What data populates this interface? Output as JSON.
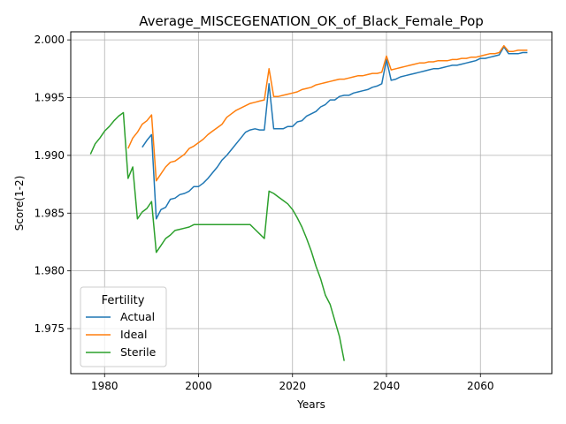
{
  "chart_data": {
    "type": "line",
    "title": "Average_MISCEGENATION_OK_of_Black_Female_Pop",
    "xlabel": "Years",
    "ylabel": "Score(1-2)",
    "xlim": [
      1972.8,
      2075.2
    ],
    "ylim": [
      1.9711,
      2.0007
    ],
    "x_ticks": [
      1980,
      2000,
      2020,
      2040,
      2060
    ],
    "x_tick_labels": [
      "1980",
      "2000",
      "2020",
      "2040",
      "2060"
    ],
    "y_ticks": [
      1.975,
      1.98,
      1.985,
      1.99,
      1.995,
      2.0
    ],
    "y_tick_labels": [
      "1.975",
      "1.980",
      "1.985",
      "1.990",
      "1.995",
      "2.000"
    ],
    "grid": true,
    "legend": {
      "title": "Fertility",
      "position": "lower-left"
    },
    "series": [
      {
        "name": "Actual",
        "color": "#1f77b4",
        "x": [
          1988,
          1989,
          1990,
          1991,
          1992,
          1993,
          1994,
          1995,
          1996,
          1997,
          1998,
          1999,
          2000,
          2001,
          2002,
          2003,
          2004,
          2005,
          2006,
          2007,
          2008,
          2009,
          2010,
          2011,
          2012,
          2013,
          2014,
          2015,
          2016,
          2017,
          2018,
          2019,
          2020,
          2021,
          2022,
          2023,
          2024,
          2025,
          2026,
          2027,
          2028,
          2029,
          2030,
          2031,
          2032,
          2033,
          2034,
          2035,
          2036,
          2037,
          2038,
          2039,
          2040,
          2041,
          2042,
          2043,
          2044,
          2045,
          2046,
          2047,
          2048,
          2049,
          2050,
          2051,
          2052,
          2053,
          2054,
          2055,
          2056,
          2057,
          2058,
          2059,
          2060,
          2061,
          2062,
          2063,
          2064,
          2065,
          2066,
          2067,
          2068,
          2069,
          2070
        ],
        "values": [
          1.9907,
          1.9913,
          1.9918,
          1.9845,
          1.9853,
          1.9855,
          1.9862,
          1.9863,
          1.9866,
          1.9867,
          1.9869,
          1.9873,
          1.9873,
          1.9876,
          1.988,
          1.9885,
          1.989,
          1.9896,
          1.99,
          1.9905,
          1.991,
          1.9915,
          1.992,
          1.9922,
          1.9923,
          1.9922,
          1.9922,
          1.9962,
          1.9923,
          1.9923,
          1.9923,
          1.9925,
          1.9925,
          1.9929,
          1.993,
          1.9934,
          1.9936,
          1.9938,
          1.9942,
          1.9944,
          1.9948,
          1.9948,
          1.9951,
          1.9952,
          1.9952,
          1.9954,
          1.9955,
          1.9956,
          1.9957,
          1.9959,
          1.996,
          1.9962,
          1.9983,
          1.9965,
          1.9966,
          1.9968,
          1.9969,
          1.997,
          1.9971,
          1.9972,
          1.9973,
          1.9974,
          1.9975,
          1.9975,
          1.9976,
          1.9977,
          1.9978,
          1.9978,
          1.9979,
          1.998,
          1.9981,
          1.9982,
          1.9984,
          1.9984,
          1.9985,
          1.9986,
          1.9987,
          1.9994,
          1.9988,
          1.9988,
          1.9988,
          1.9989,
          1.9989
        ]
      },
      {
        "name": "Ideal",
        "color": "#ff7f0e",
        "x": [
          1985,
          1986,
          1987,
          1988,
          1989,
          1990,
          1991,
          1992,
          1993,
          1994,
          1995,
          1996,
          1997,
          1998,
          1999,
          2000,
          2001,
          2002,
          2003,
          2004,
          2005,
          2006,
          2007,
          2008,
          2009,
          2010,
          2011,
          2012,
          2013,
          2014,
          2015,
          2016,
          2017,
          2018,
          2019,
          2020,
          2021,
          2022,
          2023,
          2024,
          2025,
          2026,
          2027,
          2028,
          2029,
          2030,
          2031,
          2032,
          2033,
          2034,
          2035,
          2036,
          2037,
          2038,
          2039,
          2040,
          2041,
          2042,
          2043,
          2044,
          2045,
          2046,
          2047,
          2048,
          2049,
          2050,
          2051,
          2052,
          2053,
          2054,
          2055,
          2056,
          2057,
          2058,
          2059,
          2060,
          2061,
          2062,
          2063,
          2064,
          2065,
          2066,
          2067,
          2068,
          2069,
          2070
        ],
        "values": [
          1.9906,
          1.9915,
          1.992,
          1.9927,
          1.993,
          1.9935,
          1.9878,
          1.9884,
          1.989,
          1.9894,
          1.9895,
          1.9898,
          1.9901,
          1.9906,
          1.9908,
          1.9911,
          1.9914,
          1.9918,
          1.9921,
          1.9924,
          1.9927,
          1.9933,
          1.9936,
          1.9939,
          1.9941,
          1.9943,
          1.9945,
          1.9946,
          1.9947,
          1.9948,
          1.9975,
          1.9951,
          1.9951,
          1.9952,
          1.9953,
          1.9954,
          1.9955,
          1.9957,
          1.9958,
          1.9959,
          1.9961,
          1.9962,
          1.9963,
          1.9964,
          1.9965,
          1.9966,
          1.9966,
          1.9967,
          1.9968,
          1.9969,
          1.9969,
          1.997,
          1.9971,
          1.9971,
          1.9972,
          1.9986,
          1.9974,
          1.9975,
          1.9976,
          1.9977,
          1.9978,
          1.9979,
          1.998,
          1.998,
          1.9981,
          1.9981,
          1.9982,
          1.9982,
          1.9982,
          1.9983,
          1.9983,
          1.9984,
          1.9984,
          1.9985,
          1.9985,
          1.9986,
          1.9987,
          1.9988,
          1.9988,
          1.9989,
          1.9995,
          1.999,
          1.999,
          1.9991,
          1.9991,
          1.9991
        ]
      },
      {
        "name": "Sterile",
        "color": "#2ca02c",
        "x": [
          1977,
          1978,
          1979,
          1980,
          1981,
          1982,
          1983,
          1984,
          1985,
          1986,
          1987,
          1988,
          1989,
          1990,
          1991,
          1992,
          1993,
          1994,
          1995,
          1996,
          1997,
          1998,
          1999,
          2000,
          2001,
          2002,
          2003,
          2004,
          2005,
          2006,
          2007,
          2008,
          2009,
          2010,
          2011,
          2012,
          2013,
          2014,
          2015,
          2016,
          2017,
          2018,
          2019,
          2020,
          2021,
          2022,
          2023,
          2024,
          2025,
          2026,
          2027,
          2028,
          2029,
          2030,
          2031
        ],
        "values": [
          1.9901,
          1.991,
          1.9915,
          1.9921,
          1.9925,
          1.993,
          1.9934,
          1.9937,
          1.988,
          1.989,
          1.9845,
          1.9851,
          1.9854,
          1.986,
          1.9816,
          1.9822,
          1.9828,
          1.9831,
          1.9835,
          1.9836,
          1.9837,
          1.9838,
          1.984,
          1.984,
          1.984,
          1.984,
          1.984,
          1.984,
          1.984,
          1.984,
          1.984,
          1.984,
          1.984,
          1.984,
          1.984,
          1.9836,
          1.9832,
          1.9828,
          1.9869,
          1.9867,
          1.9864,
          1.9861,
          1.9858,
          1.9853,
          1.9846,
          1.9838,
          1.9828,
          1.9817,
          1.9804,
          1.9793,
          1.9779,
          1.9771,
          1.9757,
          1.9743,
          1.9722
        ]
      }
    ]
  }
}
